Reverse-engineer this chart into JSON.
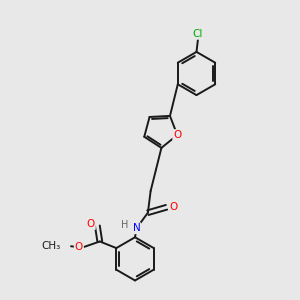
{
  "background_color": "#e8e8e8",
  "bond_color": "#1a1a1a",
  "atom_colors": {
    "O": "#ff0000",
    "N": "#0000ff",
    "Cl": "#00aa00",
    "H": "#666666",
    "C": "#1a1a1a"
  },
  "lw": 1.4,
  "fontsize": 7.5
}
